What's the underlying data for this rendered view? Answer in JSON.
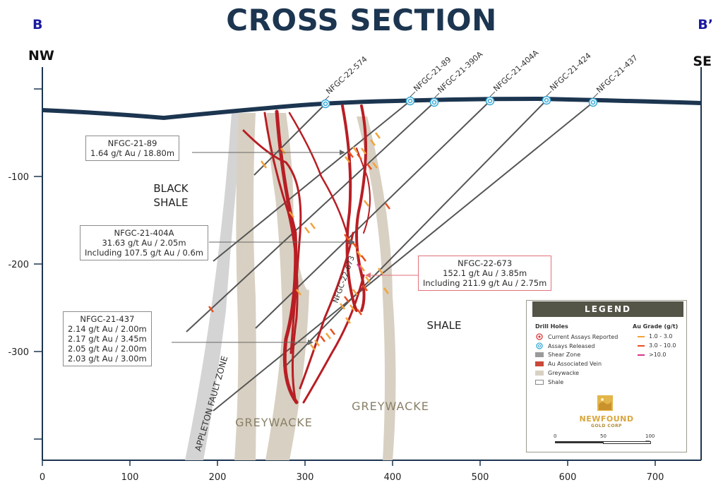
{
  "title": "CROSS SECTION",
  "section_start": "B",
  "section_end": "B’",
  "direction_left": "NW",
  "direction_right": "SE",
  "axes": {
    "x_ticks": [
      "0",
      "100",
      "200",
      "300",
      "400",
      "500",
      "600",
      "700"
    ],
    "y_ticks": [
      "-100",
      "-200",
      "-300"
    ]
  },
  "geology_labels": {
    "black_shale": [
      "BLACK",
      "SHALE"
    ],
    "shale": "SHALE",
    "greywacke_1": "GREYWACKE",
    "greywacke_2": "GREYWACKE",
    "fault_zone": "APPLETON FAULT ZONE"
  },
  "drill_holes": {
    "top": [
      "NFGC-22-574",
      "NFGC-21-89",
      "NFGC-21-390A",
      "NFGC-21-404A",
      "NFGC-21-424",
      "NFGC-21-437"
    ],
    "inline": "NFGC-22-673"
  },
  "callouts": {
    "c89": [
      "NFGC-21-89",
      "1.64 g/t Au / 18.80m"
    ],
    "c404": [
      "NFGC-21-404A",
      "31.63 g/t Au / 2.05m",
      "Including 107.5 g/t Au / 0.6m"
    ],
    "c673": [
      "NFGC-22-673",
      "152.1 g/t Au / 3.85m",
      "Including 211.9 g/t Au / 2.75m"
    ],
    "c437": [
      "NFGC-21-437",
      "2.14 g/t Au / 2.00m",
      "2.17 g/t Au / 3.45m",
      "2.05 g/t Au / 2.00m",
      "2.03 g/t Au / 3.00m"
    ]
  },
  "legend": {
    "title": "LEGEND",
    "drill_holes_header": "Drill Holes",
    "au_grade_header": "Au Grade (g/t)",
    "items": [
      "Current Assays Reported",
      "Assays Released",
      "Shear Zone",
      "Au Associated Vein",
      "Greywacke",
      "Shale"
    ],
    "grades": [
      "1.0 - 3.0",
      "3.0 - 10.0",
      ">10.0"
    ],
    "logo_top": "NEWFOUND",
    "logo_bottom": "GOLD CORP",
    "scale": [
      "0",
      "50",
      "100 m"
    ]
  },
  "colors": {
    "title": "#1c3550",
    "surface": "#1c3550",
    "vein": "#b81e24",
    "greywacke": "#d8d0c2",
    "shear": "#c9c9c9",
    "grade_low": "#f2a33a",
    "grade_mid": "#e8501e",
    "grade_high": "#d6338a",
    "hole_marker": "#36a9d8"
  }
}
